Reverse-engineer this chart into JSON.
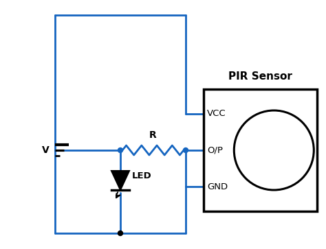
{
  "bg_color": "#ffffff",
  "wire_color": "#1565C0",
  "box_color": "#000000",
  "wire_lw": 2.0,
  "pir_label": "PIR Sensor",
  "vcc_label": "VCC",
  "op_label": "O/P",
  "gnd_label": "GND",
  "r_label": "R",
  "led_label": "LED",
  "v_label": "V",
  "figw": 4.74,
  "figh": 3.63,
  "dpi": 100
}
